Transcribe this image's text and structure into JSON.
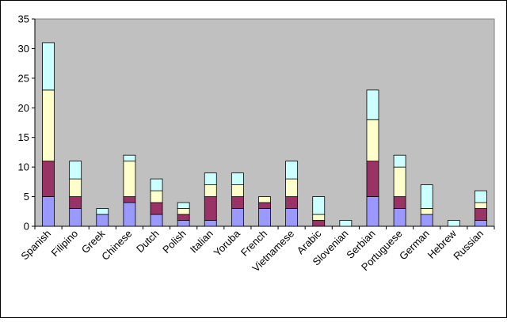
{
  "chart_data": {
    "type": "bar",
    "stacked": true,
    "categories": [
      "Spanish",
      "Filipino",
      "Greek",
      "Chinese",
      "Dutch",
      "Polish",
      "Italian",
      "Yoruba",
      "French",
      "Vietnamese",
      "Arabic",
      "Slovenian",
      "Serbian",
      "Portuguese",
      "German",
      "Hebrew",
      "Russian"
    ],
    "series": [
      {
        "values": [
          5,
          3,
          2,
          4,
          2,
          1,
          1,
          3,
          3,
          3,
          0,
          0,
          5,
          3,
          2,
          0,
          1
        ]
      },
      {
        "values": [
          6,
          2,
          0,
          1,
          2,
          1,
          4,
          2,
          1,
          2,
          1,
          0,
          6,
          2,
          0,
          0,
          2
        ]
      },
      {
        "values": [
          12,
          3,
          0,
          6,
          2,
          1,
          2,
          2,
          1,
          3,
          1,
          0,
          7,
          5,
          1,
          0,
          1
        ]
      },
      {
        "values": [
          8,
          3,
          1,
          1,
          2,
          1,
          2,
          2,
          0,
          3,
          3,
          1,
          5,
          2,
          4,
          1,
          2
        ]
      }
    ],
    "colors": [
      "#9999ff",
      "#993366",
      "#ffffcc",
      "#ccffff"
    ],
    "ylim": [
      0,
      35
    ],
    "yticks": [
      0,
      5,
      10,
      15,
      20,
      25,
      30,
      35
    ],
    "grid": false,
    "legend": "none",
    "plot_background": "#c0c0c0",
    "title": "",
    "xlabel": "",
    "ylabel": ""
  }
}
